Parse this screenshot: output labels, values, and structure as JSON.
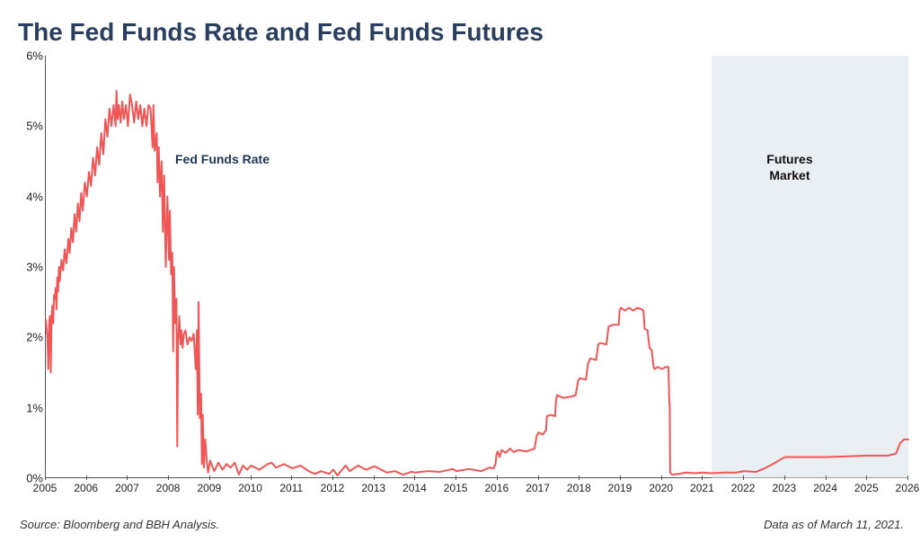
{
  "title": "The Fed Funds Rate and Fed Funds Futures",
  "source_text": "Source: Bloomberg and BBH Analysis.",
  "asof_text": "Data as of March 11, 2021.",
  "chart": {
    "type": "line",
    "background_color": "#ffffff",
    "title_color": "#2a3f5f",
    "title_fontsize": 28,
    "axis_color": "#555555",
    "tick_font_color": "#222222",
    "tick_fontsize": 13,
    "line_color": "#f05656",
    "line_width": 2,
    "futures_band_color": "#d8e2ea",
    "futures_band_opacity": 0.55,
    "x_domain": [
      2005,
      2026
    ],
    "y_domain": [
      0,
      6
    ],
    "y_ticks": [
      0,
      1,
      2,
      3,
      4,
      5,
      6
    ],
    "y_tick_labels": [
      "0%",
      "1%",
      "2%",
      "3%",
      "4%",
      "5%",
      "6%"
    ],
    "x_ticks": [
      2005,
      2006,
      2007,
      2008,
      2009,
      2010,
      2011,
      2012,
      2013,
      2014,
      2015,
      2016,
      2017,
      2018,
      2019,
      2020,
      2021,
      2022,
      2023,
      2024,
      2025,
      2026
    ],
    "futures_start_x": 2021.2,
    "series_labels": [
      {
        "text": "Fed Funds Rate",
        "x": 2009.2,
        "y": 4.55,
        "color": "#1e355a"
      },
      {
        "text": "Futures\nMarket",
        "x": 2023.6,
        "y": 4.55,
        "color": "#101010"
      }
    ],
    "data": [
      [
        2005.0,
        2.25
      ],
      [
        2005.02,
        2.1
      ],
      [
        2005.04,
        2.0
      ],
      [
        2005.06,
        1.55
      ],
      [
        2005.08,
        2.2
      ],
      [
        2005.1,
        2.3
      ],
      [
        2005.12,
        1.5
      ],
      [
        2005.14,
        2.3
      ],
      [
        2005.16,
        2.45
      ],
      [
        2005.18,
        2.2
      ],
      [
        2005.2,
        2.6
      ],
      [
        2005.22,
        2.55
      ],
      [
        2005.24,
        2.7
      ],
      [
        2005.26,
        2.4
      ],
      [
        2005.28,
        2.85
      ],
      [
        2005.3,
        2.65
      ],
      [
        2005.32,
        3.0
      ],
      [
        2005.34,
        2.8
      ],
      [
        2005.38,
        3.1
      ],
      [
        2005.42,
        2.95
      ],
      [
        2005.46,
        3.25
      ],
      [
        2005.5,
        3.05
      ],
      [
        2005.55,
        3.4
      ],
      [
        2005.58,
        3.2
      ],
      [
        2005.62,
        3.55
      ],
      [
        2005.66,
        3.35
      ],
      [
        2005.7,
        3.75
      ],
      [
        2005.74,
        3.5
      ],
      [
        2005.78,
        3.9
      ],
      [
        2005.82,
        3.65
      ],
      [
        2005.86,
        4.05
      ],
      [
        2005.9,
        3.8
      ],
      [
        2005.95,
        4.2
      ],
      [
        2006.0,
        4.0
      ],
      [
        2006.05,
        4.35
      ],
      [
        2006.1,
        4.15
      ],
      [
        2006.15,
        4.55
      ],
      [
        2006.2,
        4.3
      ],
      [
        2006.25,
        4.7
      ],
      [
        2006.3,
        4.45
      ],
      [
        2006.35,
        4.9
      ],
      [
        2006.4,
        4.6
      ],
      [
        2006.45,
        5.1
      ],
      [
        2006.5,
        4.85
      ],
      [
        2006.55,
        5.25
      ],
      [
        2006.6,
        5.0
      ],
      [
        2006.65,
        5.3
      ],
      [
        2006.7,
        5.0
      ],
      [
        2006.72,
        5.5
      ],
      [
        2006.75,
        5.1
      ],
      [
        2006.78,
        5.3
      ],
      [
        2006.82,
        5.05
      ],
      [
        2006.86,
        5.35
      ],
      [
        2006.9,
        5.1
      ],
      [
        2006.95,
        5.3
      ],
      [
        2007.0,
        5.0
      ],
      [
        2007.05,
        5.45
      ],
      [
        2007.1,
        5.3
      ],
      [
        2007.15,
        5.05
      ],
      [
        2007.2,
        5.35
      ],
      [
        2007.25,
        5.1
      ],
      [
        2007.3,
        5.3
      ],
      [
        2007.35,
        5.0
      ],
      [
        2007.4,
        5.25
      ],
      [
        2007.45,
        5.0
      ],
      [
        2007.5,
        5.3
      ],
      [
        2007.55,
        5.25
      ],
      [
        2007.6,
        4.7
      ],
      [
        2007.62,
        5.3
      ],
      [
        2007.65,
        4.65
      ],
      [
        2007.7,
        4.9
      ],
      [
        2007.72,
        4.2
      ],
      [
        2007.75,
        4.7
      ],
      [
        2007.78,
        4.0
      ],
      [
        2007.82,
        4.5
      ],
      [
        2007.85,
        3.5
      ],
      [
        2007.88,
        4.3
      ],
      [
        2007.92,
        3.0
      ],
      [
        2007.96,
        4.0
      ],
      [
        2008.0,
        3.1
      ],
      [
        2008.02,
        3.8
      ],
      [
        2008.05,
        2.9
      ],
      [
        2008.08,
        3.2
      ],
      [
        2008.1,
        1.8
      ],
      [
        2008.12,
        3.0
      ],
      [
        2008.15,
        2.2
      ],
      [
        2008.18,
        2.55
      ],
      [
        2008.2,
        0.45
      ],
      [
        2008.22,
        1.95
      ],
      [
        2008.25,
        2.3
      ],
      [
        2008.28,
        1.9
      ],
      [
        2008.3,
        2.1
      ],
      [
        2008.33,
        1.85
      ],
      [
        2008.36,
        2.05
      ],
      [
        2008.4,
        2.1
      ],
      [
        2008.45,
        1.9
      ],
      [
        2008.5,
        2.0
      ],
      [
        2008.55,
        1.95
      ],
      [
        2008.6,
        2.05
      ],
      [
        2008.65,
        1.55
      ],
      [
        2008.68,
        2.1
      ],
      [
        2008.7,
        0.9
      ],
      [
        2008.72,
        2.5
      ],
      [
        2008.75,
        0.85
      ],
      [
        2008.78,
        1.2
      ],
      [
        2008.8,
        0.2
      ],
      [
        2008.82,
        0.9
      ],
      [
        2008.85,
        0.15
      ],
      [
        2008.88,
        0.55
      ],
      [
        2008.92,
        0.25
      ],
      [
        2008.95,
        0.08
      ],
      [
        2009.0,
        0.25
      ],
      [
        2009.1,
        0.1
      ],
      [
        2009.2,
        0.22
      ],
      [
        2009.3,
        0.12
      ],
      [
        2009.4,
        0.2
      ],
      [
        2009.5,
        0.15
      ],
      [
        2009.6,
        0.22
      ],
      [
        2009.7,
        0.05
      ],
      [
        2009.8,
        0.18
      ],
      [
        2009.9,
        0.12
      ],
      [
        2010.0,
        0.18
      ],
      [
        2010.2,
        0.12
      ],
      [
        2010.4,
        0.2
      ],
      [
        2010.5,
        0.22
      ],
      [
        2010.6,
        0.15
      ],
      [
        2010.8,
        0.2
      ],
      [
        2011.0,
        0.14
      ],
      [
        2011.2,
        0.18
      ],
      [
        2011.4,
        0.1
      ],
      [
        2011.55,
        0.06
      ],
      [
        2011.7,
        0.1
      ],
      [
        2011.9,
        0.06
      ],
      [
        2012.0,
        0.12
      ],
      [
        2012.1,
        0.04
      ],
      [
        2012.3,
        0.18
      ],
      [
        2012.4,
        0.1
      ],
      [
        2012.6,
        0.18
      ],
      [
        2012.8,
        0.12
      ],
      [
        2013.0,
        0.17
      ],
      [
        2013.3,
        0.08
      ],
      [
        2013.5,
        0.1
      ],
      [
        2013.7,
        0.05
      ],
      [
        2013.9,
        0.09
      ],
      [
        2014.0,
        0.08
      ],
      [
        2014.3,
        0.1
      ],
      [
        2014.6,
        0.09
      ],
      [
        2014.9,
        0.13
      ],
      [
        2015.0,
        0.1
      ],
      [
        2015.3,
        0.13
      ],
      [
        2015.6,
        0.1
      ],
      [
        2015.8,
        0.15
      ],
      [
        2015.9,
        0.14
      ],
      [
        2015.95,
        0.2
      ],
      [
        2015.97,
        0.33
      ],
      [
        2016.0,
        0.38
      ],
      [
        2016.05,
        0.3
      ],
      [
        2016.1,
        0.4
      ],
      [
        2016.2,
        0.36
      ],
      [
        2016.3,
        0.42
      ],
      [
        2016.4,
        0.37
      ],
      [
        2016.5,
        0.4
      ],
      [
        2016.7,
        0.38
      ],
      [
        2016.9,
        0.42
      ],
      [
        2016.95,
        0.6
      ],
      [
        2017.0,
        0.65
      ],
      [
        2017.1,
        0.62
      ],
      [
        2017.18,
        0.68
      ],
      [
        2017.2,
        0.88
      ],
      [
        2017.3,
        0.9
      ],
      [
        2017.4,
        0.88
      ],
      [
        2017.42,
        1.1
      ],
      [
        2017.45,
        1.18
      ],
      [
        2017.6,
        1.14
      ],
      [
        2017.8,
        1.16
      ],
      [
        2017.9,
        1.18
      ],
      [
        2017.96,
        1.38
      ],
      [
        2018.0,
        1.42
      ],
      [
        2018.15,
        1.4
      ],
      [
        2018.2,
        1.62
      ],
      [
        2018.25,
        1.7
      ],
      [
        2018.4,
        1.68
      ],
      [
        2018.45,
        1.9
      ],
      [
        2018.5,
        1.92
      ],
      [
        2018.65,
        1.9
      ],
      [
        2018.7,
        2.15
      ],
      [
        2018.8,
        2.18
      ],
      [
        2018.95,
        2.18
      ],
      [
        2018.97,
        2.38
      ],
      [
        2019.0,
        2.42
      ],
      [
        2019.1,
        2.38
      ],
      [
        2019.2,
        2.42
      ],
      [
        2019.3,
        2.38
      ],
      [
        2019.4,
        2.42
      ],
      [
        2019.5,
        2.4
      ],
      [
        2019.55,
        2.38
      ],
      [
        2019.58,
        2.12
      ],
      [
        2019.65,
        2.1
      ],
      [
        2019.7,
        1.85
      ],
      [
        2019.75,
        1.82
      ],
      [
        2019.8,
        1.58
      ],
      [
        2019.82,
        1.55
      ],
      [
        2019.9,
        1.58
      ],
      [
        2020.0,
        1.55
      ],
      [
        2020.1,
        1.58
      ],
      [
        2020.16,
        1.58
      ],
      [
        2020.18,
        1.08
      ],
      [
        2020.19,
        1.05
      ],
      [
        2020.2,
        0.08
      ],
      [
        2020.25,
        0.05
      ],
      [
        2020.4,
        0.06
      ],
      [
        2020.6,
        0.08
      ],
      [
        2020.8,
        0.07
      ],
      [
        2021.0,
        0.08
      ],
      [
        2021.2,
        0.07
      ],
      [
        2021.5,
        0.08
      ],
      [
        2021.8,
        0.08
      ],
      [
        2022.0,
        0.1
      ],
      [
        2022.3,
        0.09
      ],
      [
        2022.5,
        0.14
      ],
      [
        2022.7,
        0.2
      ],
      [
        2022.9,
        0.27
      ],
      [
        2023.0,
        0.3
      ],
      [
        2023.5,
        0.3
      ],
      [
        2024.0,
        0.3
      ],
      [
        2024.5,
        0.31
      ],
      [
        2025.0,
        0.32
      ],
      [
        2025.5,
        0.32
      ],
      [
        2025.7,
        0.35
      ],
      [
        2025.8,
        0.5
      ],
      [
        2025.9,
        0.55
      ],
      [
        2026.0,
        0.55
      ]
    ]
  }
}
